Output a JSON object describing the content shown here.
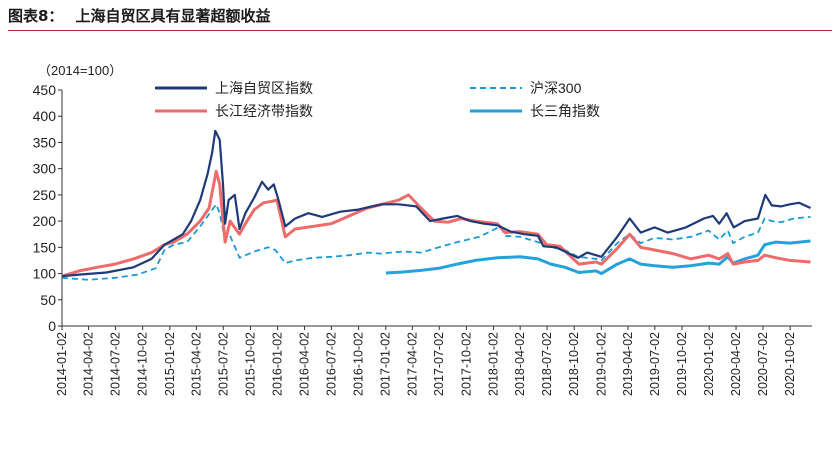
{
  "figure": {
    "number": "图表8：",
    "title": "上海自贸区具有显著超额收益"
  },
  "chart_data": {
    "type": "line",
    "unit_label": "（2014=100）",
    "ylim": [
      0,
      450
    ],
    "yticks": [
      0,
      50,
      100,
      150,
      200,
      250,
      300,
      350,
      400,
      450
    ],
    "xlim": [
      "2014-01-02",
      "2020-12-15"
    ],
    "x_tick_labels": [
      "2014-01-02",
      "2014-04-02",
      "2014-07-02",
      "2014-10-02",
      "2015-01-02",
      "2015-04-02",
      "2015-07-02",
      "2015-10-02",
      "2016-01-02",
      "2016-04-02",
      "2016-07-02",
      "2016-10-02",
      "2017-01-02",
      "2017-04-02",
      "2017-07-02",
      "2017-10-02",
      "2018-01-02",
      "2018-04-02",
      "2018-07-02",
      "2018-10-02",
      "2019-01-02",
      "2019-04-02",
      "2019-07-02",
      "2019-10-02",
      "2020-01-02",
      "2020-04-02",
      "2020-07-02",
      "2020-10-02"
    ],
    "grid": false,
    "legend_position": "top",
    "series": [
      {
        "name": "上海自贸区指数",
        "color": "#1f3a78",
        "style": "solid",
        "points": [
          [
            "2014-01-02",
            95
          ],
          [
            "2014-03-01",
            98
          ],
          [
            "2014-06-01",
            102
          ],
          [
            "2014-09-01",
            112
          ],
          [
            "2014-11-01",
            128
          ],
          [
            "2014-12-15",
            155
          ],
          [
            "2015-01-15",
            165
          ],
          [
            "2015-02-15",
            175
          ],
          [
            "2015-03-15",
            200
          ],
          [
            "2015-04-15",
            240
          ],
          [
            "2015-05-10",
            290
          ],
          [
            "2015-05-25",
            330
          ],
          [
            "2015-06-05",
            372
          ],
          [
            "2015-06-20",
            355
          ],
          [
            "2015-07-01",
            270
          ],
          [
            "2015-07-08",
            195
          ],
          [
            "2015-07-20",
            240
          ],
          [
            "2015-08-10",
            250
          ],
          [
            "2015-08-26",
            185
          ],
          [
            "2015-09-15",
            215
          ],
          [
            "2015-10-15",
            245
          ],
          [
            "2015-11-10",
            275
          ],
          [
            "2015-12-01",
            260
          ],
          [
            "2015-12-20",
            270
          ],
          [
            "2016-01-05",
            240
          ],
          [
            "2016-01-28",
            190
          ],
          [
            "2016-03-01",
            205
          ],
          [
            "2016-04-15",
            215
          ],
          [
            "2016-06-01",
            208
          ],
          [
            "2016-08-01",
            218
          ],
          [
            "2016-10-01",
            222
          ],
          [
            "2016-11-15",
            228
          ],
          [
            "2016-12-20",
            232
          ],
          [
            "2017-02-15",
            232
          ],
          [
            "2017-04-15",
            228
          ],
          [
            "2017-06-01",
            200
          ],
          [
            "2017-07-15",
            205
          ],
          [
            "2017-09-01",
            210
          ],
          [
            "2017-10-15",
            200
          ],
          [
            "2017-12-01",
            195
          ],
          [
            "2018-01-15",
            192
          ],
          [
            "2018-03-01",
            180
          ],
          [
            "2018-04-15",
            175
          ],
          [
            "2018-06-01",
            172
          ],
          [
            "2018-06-20",
            152
          ],
          [
            "2018-08-01",
            150
          ],
          [
            "2018-10-15",
            130
          ],
          [
            "2018-11-15",
            140
          ],
          [
            "2019-01-02",
            132
          ],
          [
            "2019-02-25",
            170
          ],
          [
            "2019-04-08",
            205
          ],
          [
            "2019-05-15",
            178
          ],
          [
            "2019-07-01",
            188
          ],
          [
            "2019-08-15",
            178
          ],
          [
            "2019-10-15",
            188
          ],
          [
            "2019-12-15",
            205
          ],
          [
            "2020-01-15",
            210
          ],
          [
            "2020-02-05",
            195
          ],
          [
            "2020-03-01",
            215
          ],
          [
            "2020-03-25",
            188
          ],
          [
            "2020-05-01",
            200
          ],
          [
            "2020-06-15",
            205
          ],
          [
            "2020-07-10",
            250
          ],
          [
            "2020-08-01",
            230
          ],
          [
            "2020-09-01",
            228
          ],
          [
            "2020-10-01",
            232
          ],
          [
            "2020-11-01",
            235
          ],
          [
            "2020-12-10",
            225
          ]
        ]
      },
      {
        "name": "沪深300",
        "color": "#1a9ad6",
        "style": "dashed",
        "points": [
          [
            "2014-01-02",
            92
          ],
          [
            "2014-04-01",
            88
          ],
          [
            "2014-07-01",
            92
          ],
          [
            "2014-09-15",
            98
          ],
          [
            "2014-11-15",
            110
          ],
          [
            "2014-12-15",
            145
          ],
          [
            "2015-01-15",
            155
          ],
          [
            "2015-03-01",
            160
          ],
          [
            "2015-04-15",
            190
          ],
          [
            "2015-06-08",
            232
          ],
          [
            "2015-06-20",
            215
          ],
          [
            "2015-07-08",
            165
          ],
          [
            "2015-07-25",
            172
          ],
          [
            "2015-08-26",
            130
          ],
          [
            "2015-10-15",
            142
          ],
          [
            "2015-12-01",
            150
          ],
          [
            "2015-12-25",
            145
          ],
          [
            "2016-01-28",
            120
          ],
          [
            "2016-03-01",
            125
          ],
          [
            "2016-05-01",
            130
          ],
          [
            "2016-07-01",
            132
          ],
          [
            "2016-09-01",
            135
          ],
          [
            "2016-11-01",
            140
          ],
          [
            "2016-12-15",
            138
          ],
          [
            "2017-03-01",
            142
          ],
          [
            "2017-05-01",
            140
          ],
          [
            "2017-07-01",
            150
          ],
          [
            "2017-09-01",
            160
          ],
          [
            "2017-11-15",
            170
          ],
          [
            "2018-01-25",
            190
          ],
          [
            "2018-02-10",
            172
          ],
          [
            "2018-04-01",
            170
          ],
          [
            "2018-06-01",
            160
          ],
          [
            "2018-07-15",
            150
          ],
          [
            "2018-09-01",
            145
          ],
          [
            "2018-10-15",
            132
          ],
          [
            "2018-12-15",
            128
          ],
          [
            "2019-01-02",
            125
          ],
          [
            "2019-02-25",
            158
          ],
          [
            "2019-04-08",
            175
          ],
          [
            "2019-05-15",
            158
          ],
          [
            "2019-07-01",
            168
          ],
          [
            "2019-09-01",
            165
          ],
          [
            "2019-11-01",
            170
          ],
          [
            "2019-12-31",
            182
          ],
          [
            "2020-02-05",
            165
          ],
          [
            "2020-03-05",
            182
          ],
          [
            "2020-03-23",
            158
          ],
          [
            "2020-05-01",
            170
          ],
          [
            "2020-06-15",
            178
          ],
          [
            "2020-07-08",
            205
          ],
          [
            "2020-08-01",
            200
          ],
          [
            "2020-09-01",
            198
          ],
          [
            "2020-10-15",
            205
          ],
          [
            "2020-12-10",
            208
          ]
        ]
      },
      {
        "name": "长江经济带指数",
        "color": "#ef6b6b",
        "style": "solid",
        "points": [
          [
            "2014-01-02",
            95
          ],
          [
            "2014-03-01",
            105
          ],
          [
            "2014-05-01",
            112
          ],
          [
            "2014-07-01",
            118
          ],
          [
            "2014-09-01",
            128
          ],
          [
            "2014-11-01",
            140
          ],
          [
            "2014-12-15",
            155
          ],
          [
            "2015-01-15",
            160
          ],
          [
            "2015-03-01",
            175
          ],
          [
            "2015-04-15",
            200
          ],
          [
            "2015-05-15",
            225
          ],
          [
            "2015-06-08",
            295
          ],
          [
            "2015-06-20",
            270
          ],
          [
            "2015-07-08",
            160
          ],
          [
            "2015-07-25",
            200
          ],
          [
            "2015-08-26",
            175
          ],
          [
            "2015-09-15",
            195
          ],
          [
            "2015-10-15",
            222
          ],
          [
            "2015-11-15",
            235
          ],
          [
            "2015-12-15",
            238
          ],
          [
            "2015-12-31",
            240
          ],
          [
            "2016-01-28",
            170
          ],
          [
            "2016-03-01",
            185
          ],
          [
            "2016-05-01",
            190
          ],
          [
            "2016-07-01",
            195
          ],
          [
            "2016-09-01",
            210
          ],
          [
            "2016-11-01",
            225
          ],
          [
            "2016-12-20",
            232
          ],
          [
            "2017-02-15",
            240
          ],
          [
            "2017-03-20",
            250
          ],
          [
            "2017-05-01",
            225
          ],
          [
            "2017-06-15",
            200
          ],
          [
            "2017-08-01",
            198
          ],
          [
            "2017-09-15",
            205
          ],
          [
            "2017-11-01",
            200
          ],
          [
            "2018-01-15",
            195
          ],
          [
            "2018-02-10",
            178
          ],
          [
            "2018-04-01",
            180
          ],
          [
            "2018-06-01",
            175
          ],
          [
            "2018-07-01",
            155
          ],
          [
            "2018-08-15",
            152
          ],
          [
            "2018-10-18",
            118
          ],
          [
            "2018-12-15",
            122
          ],
          [
            "2019-01-02",
            118
          ],
          [
            "2019-02-25",
            148
          ],
          [
            "2019-04-08",
            175
          ],
          [
            "2019-05-15",
            150
          ],
          [
            "2019-07-01",
            145
          ],
          [
            "2019-09-01",
            138
          ],
          [
            "2019-11-01",
            128
          ],
          [
            "2019-12-31",
            135
          ],
          [
            "2020-02-05",
            128
          ],
          [
            "2020-03-05",
            138
          ],
          [
            "2020-03-23",
            118
          ],
          [
            "2020-05-01",
            122
          ],
          [
            "2020-06-15",
            125
          ],
          [
            "2020-07-08",
            135
          ],
          [
            "2020-08-15",
            130
          ],
          [
            "2020-10-01",
            125
          ],
          [
            "2020-12-10",
            122
          ]
        ]
      },
      {
        "name": "长三角指数",
        "color": "#23a2dc",
        "style": "solid",
        "points": [
          [
            "2017-01-03",
            101
          ],
          [
            "2017-03-01",
            103
          ],
          [
            "2017-05-01",
            106
          ],
          [
            "2017-07-01",
            110
          ],
          [
            "2017-09-01",
            118
          ],
          [
            "2017-11-01",
            125
          ],
          [
            "2018-01-15",
            130
          ],
          [
            "2018-04-01",
            132
          ],
          [
            "2018-06-01",
            128
          ],
          [
            "2018-07-15",
            118
          ],
          [
            "2018-09-01",
            112
          ],
          [
            "2018-10-18",
            102
          ],
          [
            "2018-12-15",
            105
          ],
          [
            "2019-01-02",
            100
          ],
          [
            "2019-02-25",
            118
          ],
          [
            "2019-04-08",
            128
          ],
          [
            "2019-05-15",
            118
          ],
          [
            "2019-07-01",
            115
          ],
          [
            "2019-09-01",
            112
          ],
          [
            "2019-11-01",
            115
          ],
          [
            "2019-12-31",
            120
          ],
          [
            "2020-02-05",
            118
          ],
          [
            "2020-03-05",
            132
          ],
          [
            "2020-03-23",
            120
          ],
          [
            "2020-05-01",
            128
          ],
          [
            "2020-06-15",
            135
          ],
          [
            "2020-07-08",
            155
          ],
          [
            "2020-08-15",
            160
          ],
          [
            "2020-10-01",
            158
          ],
          [
            "2020-12-10",
            162
          ]
        ]
      }
    ]
  }
}
